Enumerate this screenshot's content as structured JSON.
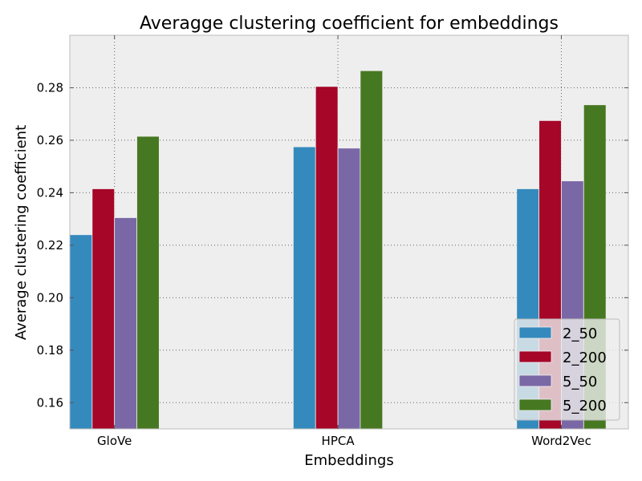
{
  "chart_data": {
    "type": "bar",
    "title": "Averagge clustering coefficient for embeddings",
    "xlabel": "Embeddings",
    "ylabel": "Average clustering coefficient",
    "categories": [
      "GloVe",
      "HPCA",
      "Word2Vec"
    ],
    "series": [
      {
        "name": "2_50",
        "color": "#348ABD",
        "values": [
          0.224,
          0.2575,
          0.2415
        ]
      },
      {
        "name": "2_200",
        "color": "#A60628",
        "values": [
          0.2415,
          0.2805,
          0.2675
        ]
      },
      {
        "name": "5_50",
        "color": "#7A68A6",
        "values": [
          0.2305,
          0.257,
          0.2445
        ]
      },
      {
        "name": "5_200",
        "color": "#467821",
        "values": [
          0.2615,
          0.2865,
          0.2735
        ]
      }
    ],
    "ylim": [
      0.15,
      0.3
    ],
    "yticks": [
      0.16,
      0.18,
      0.2,
      0.22,
      0.24,
      0.26,
      0.28
    ],
    "ytick_labels": [
      "0.16",
      "0.18",
      "0.20",
      "0.22",
      "0.24",
      "0.26",
      "0.28"
    ],
    "grid": true,
    "legend_position": "lower-right",
    "background_color": "#EEEEEE"
  }
}
